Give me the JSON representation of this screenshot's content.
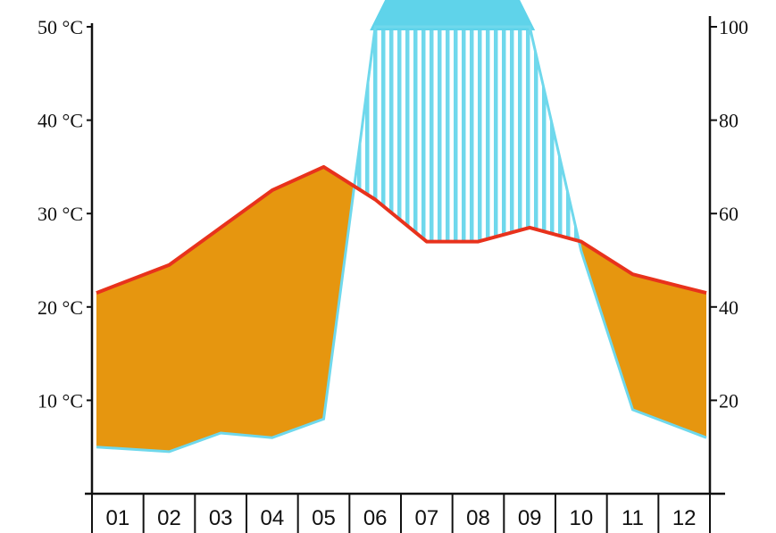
{
  "chart_data": {
    "type": "climate-diagram",
    "categories": [
      "01",
      "02",
      "03",
      "04",
      "05",
      "06",
      "07",
      "08",
      "09",
      "10",
      "11",
      "12"
    ],
    "series": [
      {
        "axis": "left",
        "color": "#e8321c",
        "values": [
          21.5,
          24.5,
          28.5,
          32.5,
          35,
          31.5,
          27,
          27,
          28.5,
          27,
          23.5,
          21.5
        ]
      },
      {
        "axis": "right",
        "color": "#6fd8ec",
        "values": [
          10,
          9,
          13,
          12,
          16,
          100,
          100,
          100,
          100,
          52,
          18,
          12
        ]
      }
    ],
    "left_axis": {
      "ticks": [
        "10 °C",
        "20 °C",
        "30 °C",
        "40 °C",
        "50 °C"
      ],
      "range": [
        0,
        50
      ]
    },
    "right_axis": {
      "ticks": [
        "20",
        "40",
        "60",
        "80",
        "100"
      ],
      "range": [
        0,
        100
      ]
    },
    "arid_fill_color": "#e6960f",
    "humid_hatch_color": "#6fd8ec",
    "perhumid_fill_color": "#5fd3ea",
    "perhumid_threshold": 100,
    "grid": false
  }
}
